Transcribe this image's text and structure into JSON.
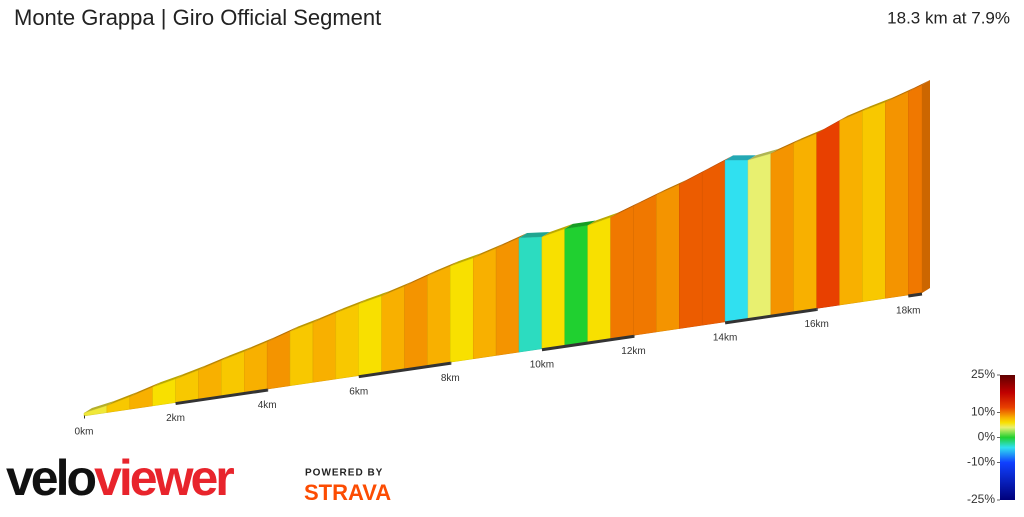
{
  "chart_data": {
    "type": "profile",
    "title": "Monte Grappa | Giro Official Segment",
    "subtitle": "18.3 km at 7.9%",
    "x": [
      0,
      0.5,
      1,
      1.5,
      2,
      2.5,
      3,
      3.5,
      4,
      4.5,
      5,
      5.5,
      6,
      6.5,
      7,
      7.5,
      8,
      8.5,
      9,
      9.5,
      10,
      10.5,
      11,
      11.5,
      12,
      12.5,
      13,
      13.5,
      14,
      14.5,
      15,
      15.5,
      16,
      16.5,
      17,
      17.5,
      18
    ],
    "values": [
      5,
      7,
      8,
      6,
      7,
      8,
      7,
      8,
      9,
      7,
      8,
      7,
      6,
      8,
      9,
      8,
      6,
      8,
      9,
      -3,
      6,
      0,
      6,
      10,
      10,
      9,
      11,
      11,
      -4,
      4,
      9,
      8,
      12,
      8,
      7,
      9,
      10
    ],
    "xlim": [
      0,
      18.3
    ],
    "xticks": [
      {
        "value": 0,
        "label": "0km"
      },
      {
        "value": 2,
        "label": "2km"
      },
      {
        "value": 4,
        "label": "4km"
      },
      {
        "value": 6,
        "label": "6km"
      },
      {
        "value": 8,
        "label": "8km"
      },
      {
        "value": 10,
        "label": "10km"
      },
      {
        "value": 12,
        "label": "12km"
      },
      {
        "value": 14,
        "label": "14km"
      },
      {
        "value": 16,
        "label": "16km"
      },
      {
        "value": 18,
        "label": "18km"
      }
    ],
    "colorbar_lim": [
      -25,
      25
    ],
    "colorbar_ticks": [
      {
        "value": 25,
        "label": "25%"
      },
      {
        "value": 10,
        "label": "10%"
      },
      {
        "value": 0,
        "label": "0%"
      },
      {
        "value": -10,
        "label": "-10%"
      },
      {
        "value": -25,
        "label": "-25%"
      }
    ],
    "colorscale": [
      [
        -25,
        "#00007a"
      ],
      [
        -10,
        "#1040ff"
      ],
      [
        -4,
        "#30e0f0"
      ],
      [
        0,
        "#20d030"
      ],
      [
        4,
        "#e8f070"
      ],
      [
        6,
        "#f8e000"
      ],
      [
        8,
        "#f8b000"
      ],
      [
        10,
        "#f07800"
      ],
      [
        12,
        "#e84000"
      ],
      [
        18,
        "#c00000"
      ],
      [
        25,
        "#600000"
      ]
    ],
    "logo": {
      "brand_a": "velo",
      "brand_b": "viewer",
      "powered": "POWERED BY",
      "strava": "STRAVA"
    }
  }
}
